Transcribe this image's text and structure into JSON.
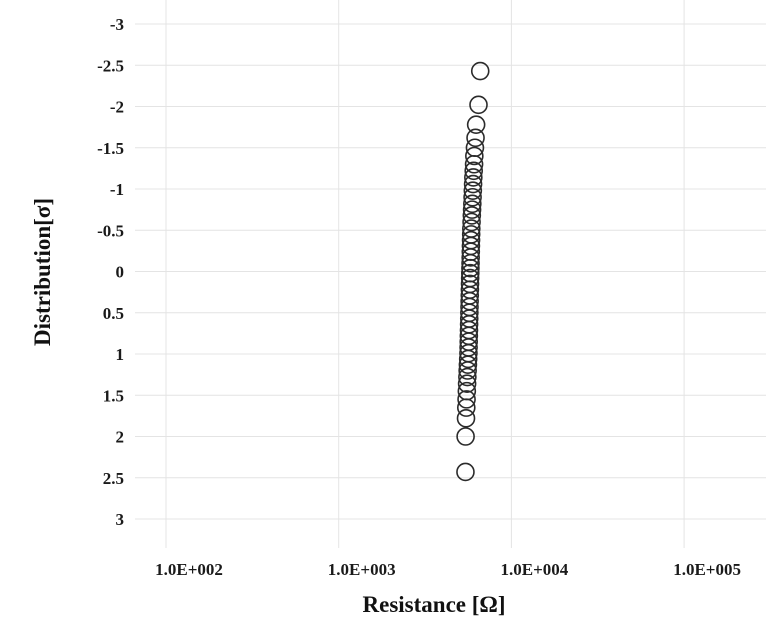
{
  "chart_data": {
    "type": "scatter",
    "title": "",
    "xlabel": "Resistance [Ω]",
    "ylabel": "Distribution[σ]",
    "x_scale": "log",
    "x_range": [
      60,
      600000
    ],
    "y_range": [
      -3.2,
      3.3
    ],
    "y_inverted": true,
    "x_ticks": [
      100,
      1000,
      10000,
      100000
    ],
    "x_tick_labels": [
      "1.0E+002",
      "1.0E+003",
      "1.0E+004",
      "1.0E+005"
    ],
    "y_ticks": [
      -3,
      -2.5,
      -2,
      -1.5,
      -1,
      -0.5,
      0,
      0.5,
      1,
      1.5,
      2,
      2.5,
      3
    ],
    "y_tick_labels": [
      "-3",
      "-2.5",
      "-2",
      "-1.5",
      "-1",
      "-0.5",
      "0",
      "0.5",
      "1",
      "1.5",
      "2",
      "2.5",
      "3"
    ],
    "grid": true,
    "legend": "none",
    "marker": "open-circle",
    "colors": {
      "marker_stroke": "#2b2b2b",
      "grid": "#e4e4e4",
      "text": "#1a1a1a"
    },
    "points": [
      {
        "x": 6600,
        "y": -2.43
      },
      {
        "x": 6450,
        "y": -2.02
      },
      {
        "x": 6250,
        "y": -1.78
      },
      {
        "x": 6200,
        "y": -1.62
      },
      {
        "x": 6150,
        "y": -1.5
      },
      {
        "x": 6100,
        "y": -1.4
      },
      {
        "x": 6080,
        "y": -1.3
      },
      {
        "x": 6050,
        "y": -1.22
      },
      {
        "x": 6020,
        "y": -1.14
      },
      {
        "x": 6000,
        "y": -1.06
      },
      {
        "x": 5980,
        "y": -0.98
      },
      {
        "x": 5960,
        "y": -0.9
      },
      {
        "x": 5940,
        "y": -0.82
      },
      {
        "x": 5920,
        "y": -0.75
      },
      {
        "x": 5900,
        "y": -0.68
      },
      {
        "x": 5880,
        "y": -0.6
      },
      {
        "x": 5860,
        "y": -0.52
      },
      {
        "x": 5850,
        "y": -0.45
      },
      {
        "x": 5840,
        "y": -0.38
      },
      {
        "x": 5830,
        "y": -0.31
      },
      {
        "x": 5820,
        "y": -0.24
      },
      {
        "x": 5810,
        "y": -0.17
      },
      {
        "x": 5800,
        "y": -0.1
      },
      {
        "x": 5790,
        "y": -0.04
      },
      {
        "x": 5780,
        "y": 0.02
      },
      {
        "x": 5770,
        "y": 0.08
      },
      {
        "x": 5760,
        "y": 0.15
      },
      {
        "x": 5750,
        "y": 0.22
      },
      {
        "x": 5740,
        "y": 0.29
      },
      {
        "x": 5730,
        "y": 0.36
      },
      {
        "x": 5720,
        "y": 0.43
      },
      {
        "x": 5710,
        "y": 0.5
      },
      {
        "x": 5700,
        "y": 0.57
      },
      {
        "x": 5690,
        "y": 0.64
      },
      {
        "x": 5680,
        "y": 0.71
      },
      {
        "x": 5670,
        "y": 0.78
      },
      {
        "x": 5660,
        "y": 0.85
      },
      {
        "x": 5650,
        "y": 0.92
      },
      {
        "x": 5640,
        "y": 0.99
      },
      {
        "x": 5620,
        "y": 1.06
      },
      {
        "x": 5600,
        "y": 1.13
      },
      {
        "x": 5580,
        "y": 1.2
      },
      {
        "x": 5560,
        "y": 1.28
      },
      {
        "x": 5540,
        "y": 1.36
      },
      {
        "x": 5520,
        "y": 1.45
      },
      {
        "x": 5500,
        "y": 1.55
      },
      {
        "x": 5480,
        "y": 1.65
      },
      {
        "x": 5460,
        "y": 1.78
      },
      {
        "x": 5430,
        "y": 2.0
      },
      {
        "x": 5420,
        "y": 2.43
      }
    ]
  }
}
